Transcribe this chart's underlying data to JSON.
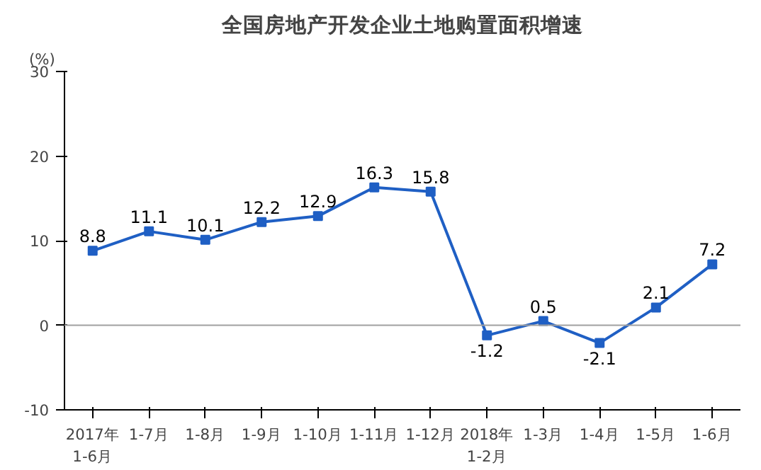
{
  "chart_data": {
    "type": "line",
    "title": "全国房地产开发企业土地购置面积增速",
    "ylabel": "(%)",
    "categories": [
      "2017年\n1-6月",
      "1-7月",
      "1-8月",
      "1-9月",
      "1-10月",
      "1-11月",
      "1-12月",
      "2018年\n1-2月",
      "1-3月",
      "1-4月",
      "1-5月",
      "1-6月"
    ],
    "series": [
      {
        "color": "#1f5fc4",
        "values": [
          8.8,
          11.1,
          10.1,
          12.2,
          12.9,
          16.3,
          15.8,
          -1.2,
          0.5,
          -2.1,
          2.1,
          7.2
        ]
      }
    ],
    "ylim": [
      -10,
      30
    ],
    "yticks": [
      -10,
      0,
      10,
      20,
      30
    ],
    "grid": false,
    "marker": "square",
    "line_style": "solid",
    "data_labels": true,
    "ref_lines": [
      {
        "axis": "y",
        "value": 0,
        "color": "#a0a0a0"
      }
    ]
  }
}
